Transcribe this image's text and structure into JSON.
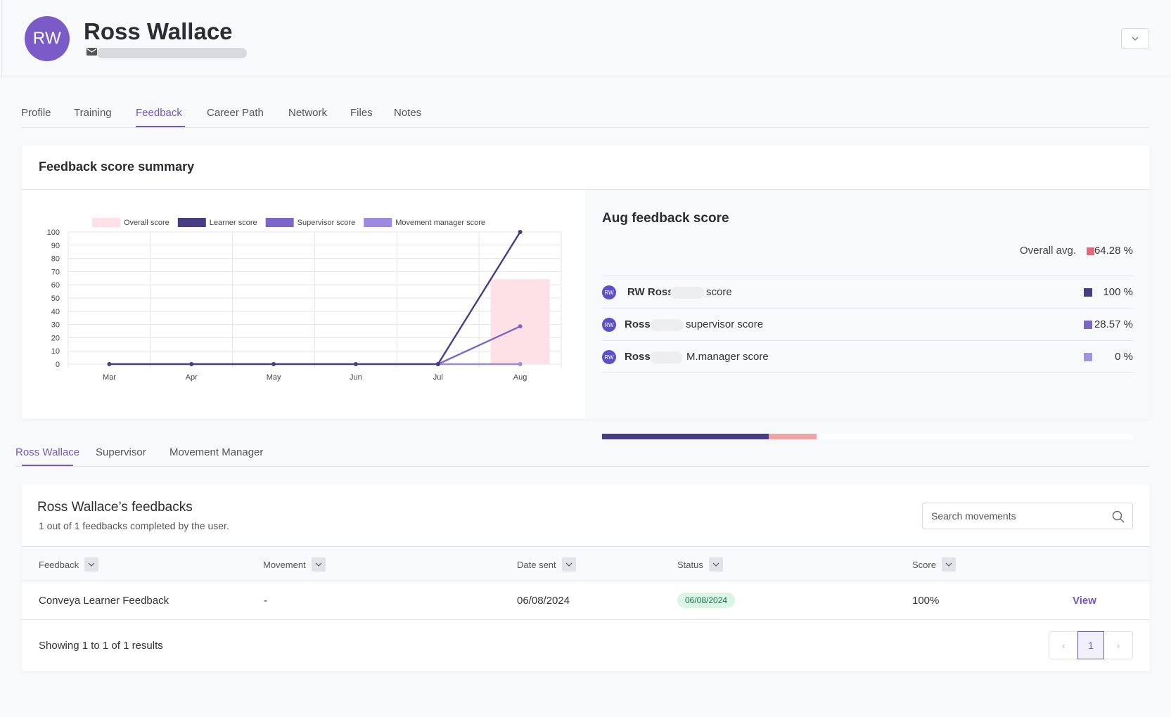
{
  "header": {
    "avatar_initials": "RW",
    "user_name": "Ross Wallace",
    "mail_icon": "mail-icon",
    "dropdown_icon": "chevron-down-icon"
  },
  "tabs": [
    {
      "label": "Profile"
    },
    {
      "label": "Training"
    },
    {
      "label": "Feedback",
      "active": true
    },
    {
      "label": "Career Path"
    },
    {
      "label": "Network"
    },
    {
      "label": "Files"
    },
    {
      "label": "Notes"
    }
  ],
  "summary": {
    "title": "Feedback score summary"
  },
  "chart_data": {
    "type": "line",
    "categories": [
      "Mar",
      "Apr",
      "May",
      "Jun",
      "Jul",
      "Aug"
    ],
    "series": [
      {
        "name": "Overall score",
        "type": "bar",
        "color": "#fde1e6",
        "values": [
          0,
          0,
          0,
          0,
          0,
          64.28
        ]
      },
      {
        "name": "Learner score",
        "color": "#483c84",
        "values": [
          0,
          0,
          0,
          0,
          0,
          100
        ]
      },
      {
        "name": "Supervisor score",
        "color": "#7c67c8",
        "values": [
          null,
          null,
          null,
          null,
          0,
          28.57
        ]
      },
      {
        "name": "Movement manager score",
        "color": "#9b8ae0",
        "values": [
          null,
          null,
          null,
          null,
          0,
          0
        ]
      }
    ],
    "ylim": [
      0,
      100
    ],
    "yticks": [
      0,
      10,
      20,
      30,
      40,
      50,
      60,
      70,
      80,
      90,
      100
    ],
    "legend": "top",
    "grid": true
  },
  "score_panel": {
    "title": "Aug feedback score",
    "overall_label": "Overall avg.",
    "overall_value": "64.28 %",
    "overall_color": "#e2697d",
    "rows": [
      {
        "avatar": "RW",
        "prefix": "RW Ross",
        "suffix": "score",
        "value": "100 %",
        "color": "#483c84"
      },
      {
        "avatar": "RW",
        "prefix": "Ross",
        "suffix": "supervisor score",
        "value": "28.57 %",
        "color": "#7c67c8"
      },
      {
        "avatar": "RW",
        "prefix": "Ross",
        "suffix": "M.manager score",
        "value": "0 %",
        "color": "#a293e0"
      }
    ],
    "bar_segments": [
      {
        "fraction": 0.3143,
        "color": "#483c84"
      },
      {
        "fraction": 0.0898,
        "color": "#f0a3a3"
      }
    ]
  },
  "sub_tabs": [
    {
      "label": "Ross Wallace",
      "active": true
    },
    {
      "label": "Supervisor"
    },
    {
      "label": "Movement Manager"
    }
  ],
  "feedbacks": {
    "title": "Ross Wallace’s feedbacks",
    "subtitle": "1 out of 1 feedbacks completed by the user.",
    "search_placeholder": "Search movements",
    "columns": [
      "Feedback",
      "Movement",
      "Date sent",
      "Status",
      "Score"
    ],
    "rows": [
      {
        "feedback": "Conveya Learner Feedback",
        "movement": "-",
        "date_sent": "06/08/2024",
        "status": "06/08/2024",
        "score": "100%",
        "action": "View"
      }
    ],
    "showing": "Showing 1 to 1 of 1 results",
    "page": "1",
    "prev": "‹",
    "next": "›"
  }
}
